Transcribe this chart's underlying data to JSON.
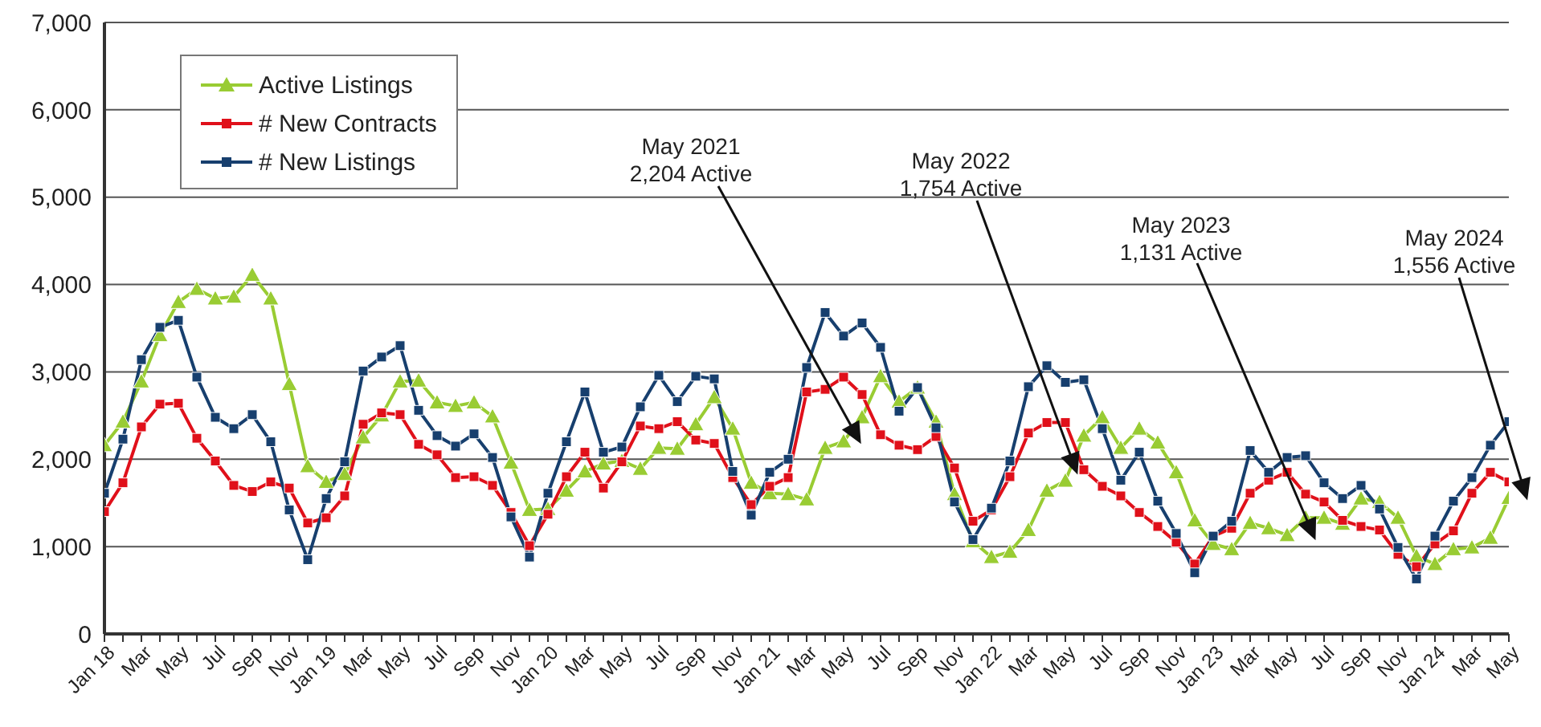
{
  "chart_data": {
    "type": "line",
    "x": [
      "2018-01",
      "2018-02",
      "2018-03",
      "2018-04",
      "2018-05",
      "2018-06",
      "2018-07",
      "2018-08",
      "2018-09",
      "2018-10",
      "2018-11",
      "2018-12",
      "2019-01",
      "2019-02",
      "2019-03",
      "2019-04",
      "2019-05",
      "2019-06",
      "2019-07",
      "2019-08",
      "2019-09",
      "2019-10",
      "2019-11",
      "2019-12",
      "2020-01",
      "2020-02",
      "2020-03",
      "2020-04",
      "2020-05",
      "2020-06",
      "2020-07",
      "2020-08",
      "2020-09",
      "2020-10",
      "2020-11",
      "2020-12",
      "2021-01",
      "2021-02",
      "2021-03",
      "2021-04",
      "2021-05",
      "2021-06",
      "2021-07",
      "2021-08",
      "2021-09",
      "2021-10",
      "2021-11",
      "2021-12",
      "2022-01",
      "2022-02",
      "2022-03",
      "2022-04",
      "2022-05",
      "2022-06",
      "2022-07",
      "2022-08",
      "2022-09",
      "2022-10",
      "2022-11",
      "2022-12",
      "2023-01",
      "2023-02",
      "2023-03",
      "2023-04",
      "2023-05",
      "2023-06",
      "2023-07",
      "2023-08",
      "2023-09",
      "2023-10",
      "2023-11",
      "2023-12",
      "2024-01",
      "2024-02",
      "2024-03",
      "2024-04",
      "2024-05"
    ],
    "series": [
      {
        "name": "Active Listings",
        "color": "#99cc33",
        "marker": "triangle",
        "values": [
          2160,
          2430,
          2890,
          3420,
          3800,
          3950,
          3840,
          3860,
          4110,
          3840,
          2860,
          1920,
          1740,
          1830,
          2250,
          2500,
          2890,
          2900,
          2650,
          2610,
          2650,
          2490,
          1960,
          1420,
          1430,
          1640,
          1860,
          1950,
          1980,
          1890,
          2130,
          2120,
          2400,
          2710,
          2350,
          1730,
          1610,
          1600,
          1540,
          2130,
          2204,
          2480,
          2950,
          2660,
          2820,
          2430,
          1600,
          1060,
          880,
          940,
          1190,
          1640,
          1754,
          2270,
          2480,
          2130,
          2350,
          2190,
          1850,
          1300,
          1030,
          970,
          1270,
          1210,
          1131,
          1330,
          1330,
          1260,
          1550,
          1510,
          1330,
          890,
          800,
          970,
          990,
          1100,
          1556
        ]
      },
      {
        "name": "# New Contracts",
        "color": "#e0101a",
        "marker": "square",
        "values": [
          1400,
          1730,
          2370,
          2630,
          2640,
          2240,
          1980,
          1700,
          1630,
          1740,
          1670,
          1270,
          1330,
          1580,
          2400,
          2530,
          2510,
          2170,
          2050,
          1790,
          1800,
          1700,
          1390,
          1010,
          1370,
          1800,
          2080,
          1670,
          1970,
          2380,
          2350,
          2430,
          2220,
          2180,
          1790,
          1480,
          1690,
          1790,
          2770,
          2800,
          2940,
          2740,
          2280,
          2160,
          2110,
          2260,
          1900,
          1290,
          1420,
          1800,
          2300,
          2420,
          2420,
          1880,
          1690,
          1580,
          1390,
          1230,
          1050,
          800,
          1120,
          1210,
          1610,
          1760,
          1850,
          1600,
          1510,
          1300,
          1230,
          1190,
          910,
          770,
          1030,
          1180,
          1610,
          1850,
          1740
        ]
      },
      {
        "name": "# New Listings",
        "color": "#173f6e",
        "marker": "square",
        "values": [
          1610,
          2230,
          3140,
          3510,
          3590,
          2940,
          2480,
          2350,
          2510,
          2200,
          1420,
          850,
          1550,
          1970,
          3010,
          3170,
          3300,
          2560,
          2270,
          2150,
          2290,
          2020,
          1340,
          880,
          1610,
          2200,
          2770,
          2080,
          2140,
          2600,
          2960,
          2660,
          2950,
          2920,
          1860,
          1360,
          1850,
          2000,
          3050,
          3680,
          3410,
          3560,
          3280,
          2550,
          2820,
          2360,
          1510,
          1080,
          1440,
          1980,
          2830,
          3070,
          2880,
          2910,
          2350,
          1760,
          2080,
          1520,
          1150,
          700,
          1120,
          1290,
          2100,
          1850,
          2020,
          2040,
          1730,
          1550,
          1700,
          1430,
          990,
          630,
          1120,
          1520,
          1790,
          2160,
          2430
        ]
      }
    ],
    "xlim": [
      "2018-01",
      "2024-05"
    ],
    "xticks": [
      {
        "value": "2018-01",
        "label": "Jan 18"
      },
      {
        "value": "2018-02",
        "label": null
      },
      {
        "value": "2018-03",
        "label": "Mar"
      },
      {
        "value": "2018-04",
        "label": null
      },
      {
        "value": "2018-05",
        "label": "May"
      },
      {
        "value": "2018-06",
        "label": null
      },
      {
        "value": "2018-07",
        "label": "Jul"
      },
      {
        "value": "2018-08",
        "label": null
      },
      {
        "value": "2018-09",
        "label": "Sep"
      },
      {
        "value": "2018-10",
        "label": null
      },
      {
        "value": "2018-11",
        "label": "Nov"
      },
      {
        "value": "2018-12",
        "label": null
      },
      {
        "value": "2019-01",
        "label": "Jan 19"
      },
      {
        "value": "2019-02",
        "label": null
      },
      {
        "value": "2019-03",
        "label": "Mar"
      },
      {
        "value": "2019-04",
        "label": null
      },
      {
        "value": "2019-05",
        "label": "May"
      },
      {
        "value": "2019-06",
        "label": null
      },
      {
        "value": "2019-07",
        "label": "Jul"
      },
      {
        "value": "2019-08",
        "label": null
      },
      {
        "value": "2019-09",
        "label": "Sep"
      },
      {
        "value": "2019-10",
        "label": null
      },
      {
        "value": "2019-11",
        "label": "Nov"
      },
      {
        "value": "2019-12",
        "label": null
      },
      {
        "value": "2020-01",
        "label": "Jan 20"
      },
      {
        "value": "2020-02",
        "label": null
      },
      {
        "value": "2020-03",
        "label": "Mar"
      },
      {
        "value": "2020-04",
        "label": null
      },
      {
        "value": "2020-05",
        "label": "May"
      },
      {
        "value": "2020-06",
        "label": null
      },
      {
        "value": "2020-07",
        "label": "Jul"
      },
      {
        "value": "2020-08",
        "label": null
      },
      {
        "value": "2020-09",
        "label": "Sep"
      },
      {
        "value": "2020-10",
        "label": null
      },
      {
        "value": "2020-11",
        "label": "Nov"
      },
      {
        "value": "2020-12",
        "label": null
      },
      {
        "value": "2021-01",
        "label": "Jan 21"
      },
      {
        "value": "2021-02",
        "label": null
      },
      {
        "value": "2021-03",
        "label": "Mar"
      },
      {
        "value": "2021-04",
        "label": null
      },
      {
        "value": "2021-05",
        "label": "May"
      },
      {
        "value": "2021-06",
        "label": null
      },
      {
        "value": "2021-07",
        "label": "Jul"
      },
      {
        "value": "2021-08",
        "label": null
      },
      {
        "value": "2021-09",
        "label": "Sep"
      },
      {
        "value": "2021-10",
        "label": null
      },
      {
        "value": "2021-11",
        "label": "Nov"
      },
      {
        "value": "2021-12",
        "label": null
      },
      {
        "value": "2022-01",
        "label": "Jan 22"
      },
      {
        "value": "2022-02",
        "label": null
      },
      {
        "value": "2022-03",
        "label": "Mar"
      },
      {
        "value": "2022-04",
        "label": null
      },
      {
        "value": "2022-05",
        "label": "May"
      },
      {
        "value": "2022-06",
        "label": null
      },
      {
        "value": "2022-07",
        "label": "Jul"
      },
      {
        "value": "2022-08",
        "label": null
      },
      {
        "value": "2022-09",
        "label": "Sep"
      },
      {
        "value": "2022-10",
        "label": null
      },
      {
        "value": "2022-11",
        "label": "Nov"
      },
      {
        "value": "2022-12",
        "label": null
      },
      {
        "value": "2023-01",
        "label": "Jan 23"
      },
      {
        "value": "2023-02",
        "label": null
      },
      {
        "value": "2023-03",
        "label": "Mar"
      },
      {
        "value": "2023-04",
        "label": null
      },
      {
        "value": "2023-05",
        "label": "May"
      },
      {
        "value": "2023-06",
        "label": null
      },
      {
        "value": "2023-07",
        "label": "Jul"
      },
      {
        "value": "2023-08",
        "label": null
      },
      {
        "value": "2023-09",
        "label": "Sep"
      },
      {
        "value": "2023-10",
        "label": null
      },
      {
        "value": "2023-11",
        "label": "Nov"
      },
      {
        "value": "2023-12",
        "label": null
      },
      {
        "value": "2024-01",
        "label": "Jan 24"
      },
      {
        "value": "2024-02",
        "label": null
      },
      {
        "value": "2024-03",
        "label": "Mar"
      },
      {
        "value": "2024-04",
        "label": null
      },
      {
        "value": "2024-05",
        "label": "May"
      }
    ],
    "ylim": [
      0,
      7000
    ],
    "yticks": [
      0,
      {
        "value": 1000,
        "label": "1,000"
      },
      {
        "value": 2000,
        "label": "2,000"
      },
      {
        "value": 3000,
        "label": "3,000"
      },
      {
        "value": 4000,
        "label": "4,000"
      },
      {
        "value": 5000,
        "label": "5,000"
      },
      {
        "value": 6000,
        "label": "6,000"
      },
      {
        "value": 7000,
        "label": "7,000"
      }
    ],
    "grid": "y",
    "legend": "top left",
    "annotations": [
      "May 2021\n2,204 Active",
      "May 2022\n1,754 Active",
      "May 2023\n1,131 Active",
      "May 2024\n1,556 Active"
    ]
  }
}
